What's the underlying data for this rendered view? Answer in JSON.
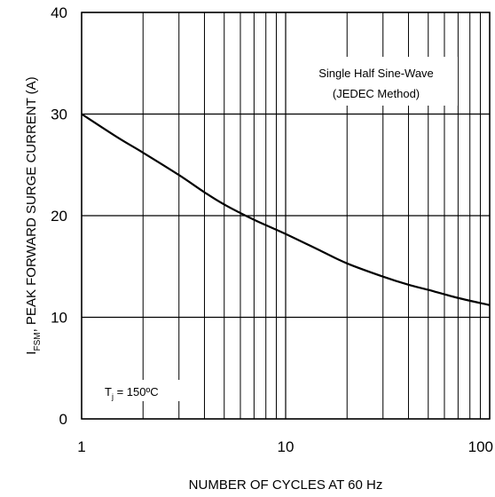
{
  "chart_data": {
    "type": "line",
    "xscale": "log",
    "xlim": [
      1,
      100
    ],
    "ylim": [
      0,
      40
    ],
    "x_ticks": [
      1,
      10,
      100
    ],
    "x_tick_labels": [
      "1",
      "10",
      "100"
    ],
    "y_ticks": [
      0,
      10,
      20,
      30,
      40
    ],
    "y_tick_labels": [
      "0",
      "10",
      "20",
      "30",
      "40"
    ],
    "xlabel": "NUMBER OF CYCLES AT 60 Hz",
    "ylabel": {
      "symbol": "I",
      "subscript": "FSM",
      "text": ", PEAK FORWARD SURGE CURRENT (A)"
    },
    "grid": true,
    "line_color": "#000000",
    "series": [
      {
        "x": [
          1,
          1.5,
          2,
          3,
          4,
          5,
          7,
          10,
          15,
          20,
          30,
          40,
          50,
          70,
          100
        ],
        "y": [
          30,
          27.7,
          26.2,
          24.0,
          22.3,
          21.1,
          19.6,
          18.2,
          16.5,
          15.3,
          14.0,
          13.2,
          12.7,
          11.9,
          11.2
        ]
      }
    ],
    "annotations": {
      "method_line1": "Single Half Sine-Wave",
      "method_line2": "(JEDEC Method)",
      "temp_prefix": "T",
      "temp_sub": "j",
      "temp_value": " = 150ºC"
    }
  }
}
